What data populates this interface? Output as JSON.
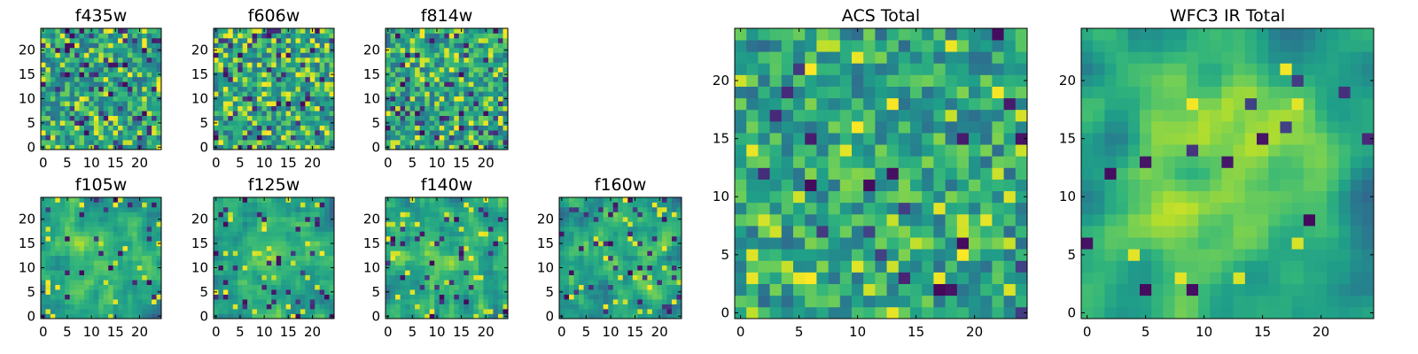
{
  "chart_data": [
    {
      "id": "f435w",
      "type": "heatmap",
      "title": "f435w",
      "grid_size": 25,
      "seed": 11,
      "smooth": 0,
      "bias": 0.0,
      "dark_rate": 0.09,
      "bright_rate": 0.1,
      "xlim": [
        -0.5,
        24.5
      ],
      "ylim": [
        -0.5,
        24.5
      ],
      "xticks": [
        0,
        5,
        10,
        15,
        20
      ],
      "yticks": [
        0,
        5,
        10,
        15,
        20
      ],
      "colormap": "viridis",
      "grid": false
    },
    {
      "id": "f606w",
      "type": "heatmap",
      "title": "f606w",
      "grid_size": 25,
      "seed": 23,
      "smooth": 0,
      "bias": 0.0,
      "dark_rate": 0.07,
      "bright_rate": 0.14,
      "xlim": [
        -0.5,
        24.5
      ],
      "ylim": [
        -0.5,
        24.5
      ],
      "xticks": [
        0,
        5,
        10,
        15,
        20
      ],
      "yticks": [
        0,
        5,
        10,
        15,
        20
      ],
      "colormap": "viridis",
      "grid": false
    },
    {
      "id": "f814w",
      "type": "heatmap",
      "title": "f814w",
      "grid_size": 25,
      "seed": 37,
      "smooth": 0,
      "bias": 0.0,
      "dark_rate": 0.08,
      "bright_rate": 0.12,
      "xlim": [
        -0.5,
        24.5
      ],
      "ylim": [
        -0.5,
        24.5
      ],
      "xticks": [
        0,
        5,
        10,
        15,
        20
      ],
      "yticks": [
        0,
        5,
        10,
        15,
        20
      ],
      "colormap": "viridis",
      "grid": false
    },
    {
      "id": "f105w",
      "type": "heatmap",
      "title": "f105w",
      "grid_size": 25,
      "seed": 41,
      "smooth": 1,
      "bias": 0.15,
      "dark_rate": 0.04,
      "bright_rate": 0.05,
      "xlim": [
        -0.5,
        24.5
      ],
      "ylim": [
        -0.5,
        24.5
      ],
      "xticks": [
        0,
        5,
        10,
        15,
        20
      ],
      "yticks": [
        0,
        5,
        10,
        15,
        20
      ],
      "colormap": "viridis",
      "grid": false
    },
    {
      "id": "f125w",
      "type": "heatmap",
      "title": "f125w",
      "grid_size": 25,
      "seed": 53,
      "smooth": 1,
      "bias": 0.12,
      "dark_rate": 0.05,
      "bright_rate": 0.05,
      "xlim": [
        -0.5,
        24.5
      ],
      "ylim": [
        -0.5,
        24.5
      ],
      "xticks": [
        0,
        5,
        10,
        15,
        20
      ],
      "yticks": [
        0,
        5,
        10,
        15,
        20
      ],
      "colormap": "viridis",
      "grid": false
    },
    {
      "id": "f140w",
      "type": "heatmap",
      "title": "f140w",
      "grid_size": 25,
      "seed": 67,
      "smooth": 1,
      "bias": 0.08,
      "dark_rate": 0.05,
      "bright_rate": 0.06,
      "xlim": [
        -0.5,
        24.5
      ],
      "ylim": [
        -0.5,
        24.5
      ],
      "xticks": [
        0,
        5,
        10,
        15,
        20
      ],
      "yticks": [
        0,
        5,
        10,
        15,
        20
      ],
      "colormap": "viridis",
      "grid": false
    },
    {
      "id": "f160w",
      "type": "heatmap",
      "title": "f160w",
      "grid_size": 25,
      "seed": 79,
      "smooth": 1,
      "bias": 0.1,
      "dark_rate": 0.06,
      "bright_rate": 0.05,
      "xlim": [
        -0.5,
        24.5
      ],
      "ylim": [
        -0.5,
        24.5
      ],
      "xticks": [
        0,
        5,
        10,
        15,
        20
      ],
      "yticks": [
        0,
        5,
        10,
        15,
        20
      ],
      "colormap": "viridis",
      "grid": false
    },
    {
      "id": "acs_total",
      "type": "heatmap",
      "title": "ACS Total",
      "grid_size": 25,
      "seed": 97,
      "smooth": 0,
      "bias": 0.05,
      "dark_rate": 0.04,
      "bright_rate": 0.06,
      "xlim": [
        -0.5,
        24.5
      ],
      "ylim": [
        -0.5,
        24.5
      ],
      "xticks": [
        0,
        5,
        10,
        15,
        20
      ],
      "yticks": [
        0,
        5,
        10,
        15,
        20
      ],
      "colormap": "viridis",
      "grid": false
    },
    {
      "id": "wfc3_ir_total",
      "type": "heatmap",
      "title": "WFC3 IR Total",
      "grid_size": 25,
      "seed": 113,
      "smooth": 2,
      "bias": 0.25,
      "dark_rate": 0.03,
      "bright_rate": 0.02,
      "xlim": [
        -0.5,
        24.5
      ],
      "ylim": [
        -0.5,
        24.5
      ],
      "xticks": [
        0,
        5,
        10,
        15,
        20
      ],
      "yticks": [
        0,
        5,
        10,
        15,
        20
      ],
      "colormap": "viridis",
      "grid": false
    }
  ]
}
